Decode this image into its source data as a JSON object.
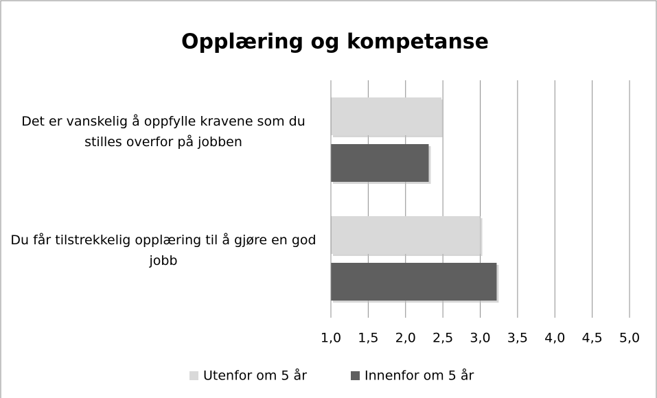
{
  "chart_data": {
    "type": "bar",
    "orientation": "horizontal",
    "title": "Opplæring og kompetanse",
    "categories": [
      "Det er vanskelig å oppfylle kravene som du stilles overfor på jobben",
      "Du får tilstrekkelig opplæring til å gjøre en god jobb"
    ],
    "series": [
      {
        "name": "Utenfor om 5 år",
        "color": "#d9d9d9",
        "values": [
          2.48,
          3.0
        ]
      },
      {
        "name": "Innenfor om 5 år",
        "color": "#5f5f5f",
        "values": [
          2.31,
          3.22
        ]
      }
    ],
    "xlim": [
      1,
      5
    ],
    "xticks": [
      {
        "value": 1,
        "label": "1,0"
      },
      {
        "value": 1.5,
        "label": "1,5"
      },
      {
        "value": 2,
        "label": "2,0"
      },
      {
        "value": 2.5,
        "label": "2,5"
      },
      {
        "value": 3,
        "label": "3,0"
      },
      {
        "value": 3.5,
        "label": "3,5"
      },
      {
        "value": 4,
        "label": "4,0"
      },
      {
        "value": 4.5,
        "label": "4,5"
      },
      {
        "value": 5,
        "label": "5,0"
      }
    ],
    "grid": true,
    "legend": "bottom"
  }
}
